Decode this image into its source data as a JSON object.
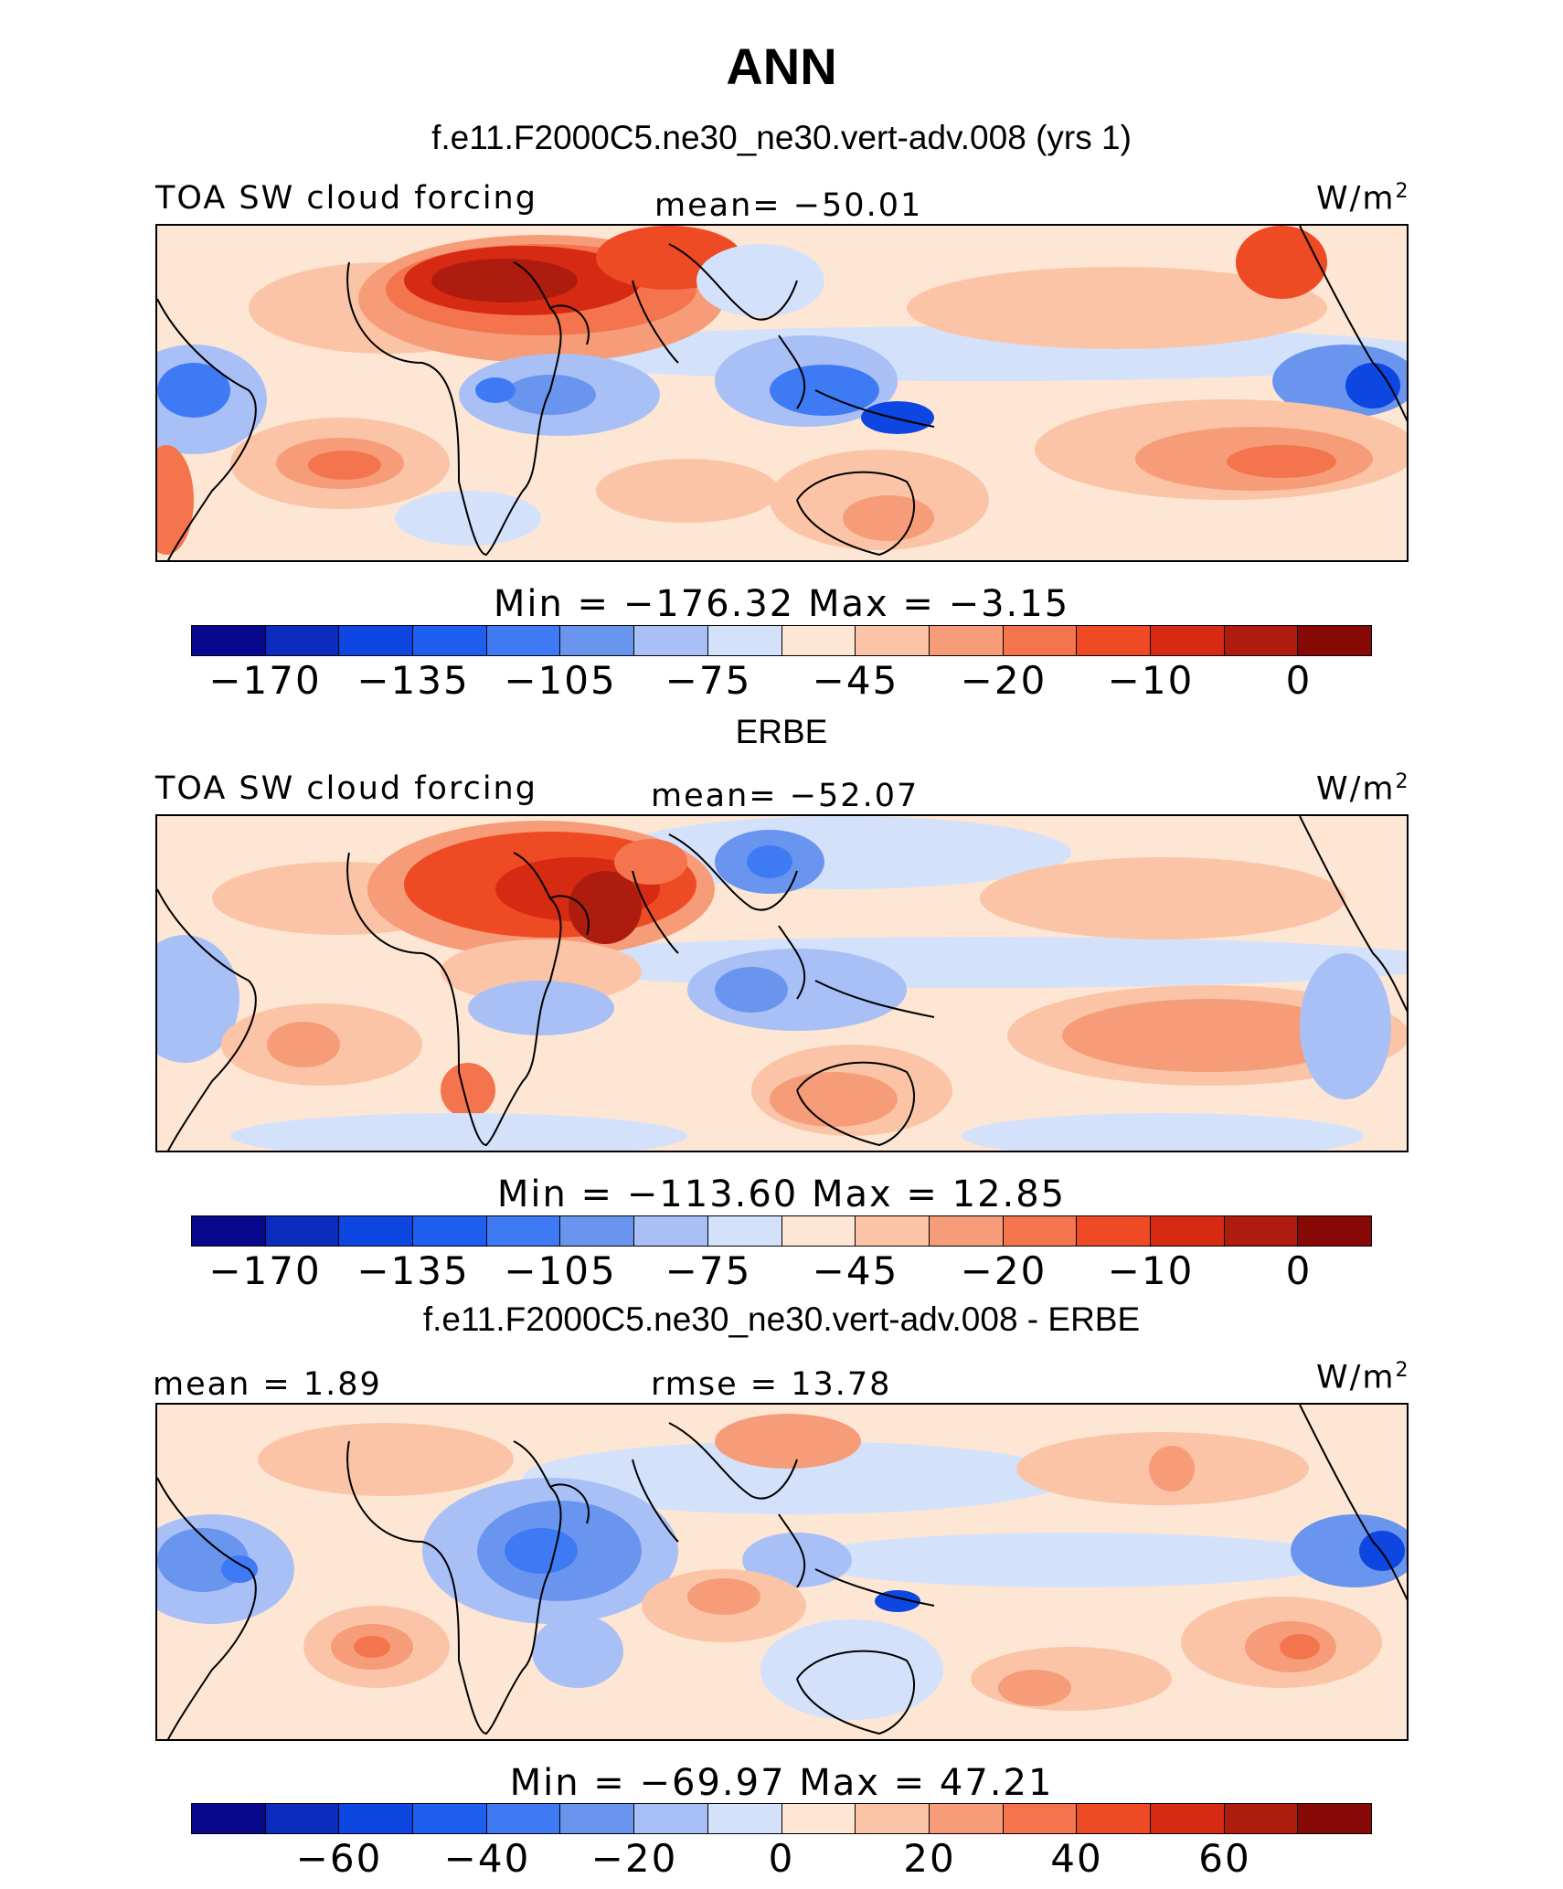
{
  "header": {
    "season": "ANN",
    "run_title": "f.e11.F2000C5.ne30_ne30.vert-adv.008 (yrs 1)"
  },
  "palette": [
    "#08088c",
    "#0b2cbd",
    "#0d46e0",
    "#1e5ff0",
    "#3f7af5",
    "#6a95ef",
    "#a9c0f7",
    "#d4e1fb",
    "#fde6d4",
    "#fbc4a6",
    "#f79c78",
    "#f4754d",
    "#ee4a24",
    "#d62b12",
    "#ad1c0e",
    "#870906"
  ],
  "panels": [
    {
      "id": "model",
      "section_title": "",
      "left_label": "TOA SW cloud forcing",
      "center_label": "mean= −50.01",
      "unit": "W/m",
      "unit_sup": "2",
      "minmax": "Min  =  −176.32  Max  =    −3.15",
      "ticks": [
        "−170",
        "−135",
        "−105",
        "−75",
        "−45",
        "−20",
        "−10",
        "0"
      ]
    },
    {
      "id": "obs",
      "section_title": "ERBE",
      "left_label": "TOA SW cloud forcing",
      "center_label": "mean= −52.07",
      "unit": "W/m",
      "unit_sup": "2",
      "minmax": "Min  =  −113.60  Max  =    12.85",
      "ticks": [
        "−170",
        "−135",
        "−105",
        "−75",
        "−45",
        "−20",
        "−10",
        "0"
      ]
    },
    {
      "id": "diff",
      "section_title": "f.e11.F2000C5.ne30_ne30.vert-adv.008 - ERBE",
      "left_label": "mean  =    1.89",
      "center_label": "rmse  =   13.78",
      "unit": "W/m",
      "unit_sup": "2",
      "minmax": "Min  =  −69.97  Max  =    47.21",
      "ticks": [
        "−60",
        "−40",
        "−20",
        "0",
        "20",
        "40",
        "60"
      ]
    }
  ],
  "chart_data": [
    {
      "type": "heatmap",
      "title": "TOA SW cloud forcing",
      "units": "W/m2",
      "mean": -50.01,
      "min": -176.32,
      "max": -3.15,
      "colorbar_ticks": [
        -170,
        -135,
        -105,
        -75,
        -45,
        -20,
        -10,
        0
      ]
    },
    {
      "type": "heatmap",
      "title": "TOA SW cloud forcing (ERBE)",
      "units": "W/m2",
      "mean": -52.07,
      "min": -113.6,
      "max": 12.85,
      "colorbar_ticks": [
        -170,
        -135,
        -105,
        -75,
        -45,
        -20,
        -10,
        0
      ]
    },
    {
      "type": "heatmap",
      "title": "f.e11.F2000C5.ne30_ne30.vert-adv.008 - ERBE",
      "units": "W/m2",
      "mean": 1.89,
      "rmse": 13.78,
      "min": -69.97,
      "max": 47.21,
      "colorbar_ticks": [
        -60,
        -40,
        -20,
        0,
        20,
        40,
        60
      ]
    }
  ]
}
